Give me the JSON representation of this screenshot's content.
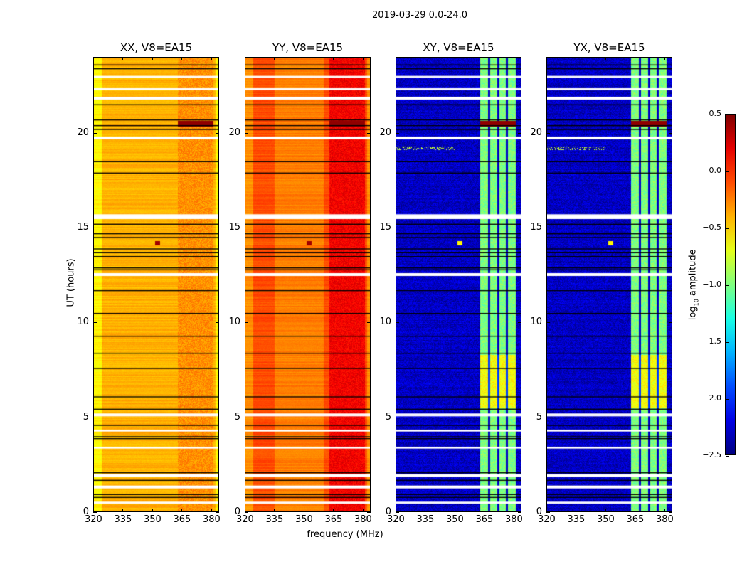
{
  "figure_title": "2019-03-29 0.0-24.0",
  "chart_data": {
    "type": "heatmap",
    "xlabel": "frequency (MHz)",
    "ylabel": "UT (hours)",
    "xlim": [
      320,
      384
    ],
    "ylim": [
      0,
      24
    ],
    "xticks": [
      "320",
      "335",
      "350",
      "365",
      "380"
    ],
    "yticks": [
      "0",
      "5",
      "10",
      "15",
      "20"
    ],
    "colormap": "jet",
    "colorbar": {
      "label_main": "log",
      "label_sub": "10",
      "label_rest": " amplitude",
      "range": [
        -2.5,
        0.5
      ],
      "ticks": [
        "0.5",
        "0.0",
        "−0.5",
        "−1.0",
        "−1.5",
        "−2.0",
        "−2.5"
      ]
    },
    "panels": [
      {
        "title": "XX, V8=EA15",
        "base_level": -0.4,
        "rfi_band_level": -0.3,
        "rfi_band_mhz": [
          363,
          381
        ]
      },
      {
        "title": "YY, V8=EA15",
        "base_level": -0.1,
        "rfi_band_level": 0.15,
        "rfi_band_mhz": [
          363,
          381
        ]
      },
      {
        "title": "XY, V8=EA15",
        "base_level": -2.3,
        "rfi_band_level": -1.0,
        "rfi_band_mhz": [
          363,
          381
        ]
      },
      {
        "title": "YX, V8=EA15",
        "base_level": -2.3,
        "rfi_band_level": -1.0,
        "rfi_band_mhz": [
          363,
          381
        ]
      }
    ],
    "flagged_hours_white": [
      [
        0.45,
        0.55
      ],
      [
        1.25,
        1.4
      ],
      [
        1.85,
        2.0
      ],
      [
        3.35,
        3.45
      ],
      [
        4.25,
        4.35
      ],
      [
        5.05,
        5.2
      ],
      [
        12.45,
        12.6
      ],
      [
        15.45,
        15.7
      ],
      [
        19.65,
        19.8
      ],
      [
        21.75,
        21.9
      ],
      [
        22.25,
        22.35
      ],
      [
        22.9,
        23.0
      ]
    ],
    "flagged_hours_black": [
      0.8,
      0.95,
      1.7,
      2.1,
      3.9,
      4.0,
      4.6,
      5.45,
      6.1,
      7.6,
      8.4,
      9.3,
      10.5,
      11.7,
      12.8,
      12.9,
      13.5,
      13.7,
      13.9,
      14.5,
      14.7,
      15.2,
      17.9,
      18.5,
      20.2,
      20.4,
      20.7,
      21.5,
      23.4,
      23.6
    ]
  }
}
